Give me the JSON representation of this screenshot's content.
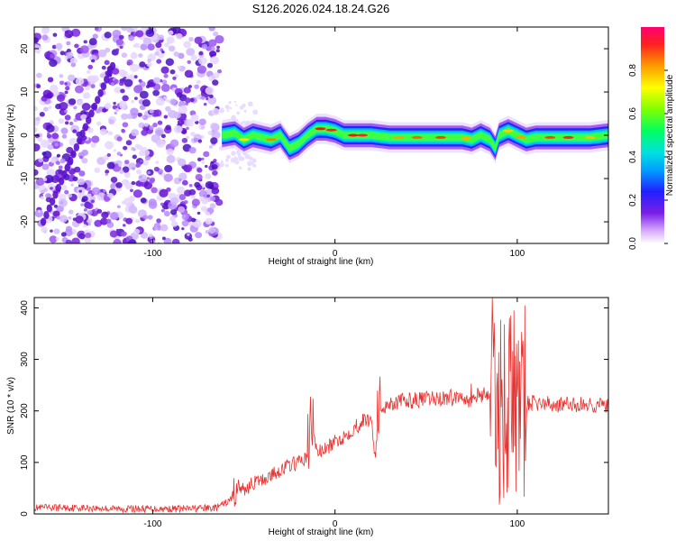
{
  "title": "S126.2026.024.18.24.G26",
  "colors": {
    "line": "#e8322f",
    "axis": "#000000",
    "background": "#ffffff"
  },
  "chart_data": [
    {
      "type": "heatmap",
      "xlabel": "Height of straight line (km)",
      "ylabel": "Frequency (Hz)",
      "xlim": [
        -165,
        150
      ],
      "ylim": [
        -25,
        25
      ],
      "xticks": [
        -100,
        0,
        100
      ],
      "xtick_labels": [
        "-100",
        "0",
        "100"
      ],
      "yticks": [
        -20,
        -10,
        0,
        10,
        20
      ],
      "ytick_labels": [
        "-20",
        "-10",
        "0",
        "10",
        "20"
      ],
      "noise_region_x": [
        -165,
        -63
      ],
      "ridge_x": [
        -62,
        -55,
        -50,
        -45,
        -35,
        -30,
        -25,
        -20,
        -15,
        -10,
        -5,
        0,
        5,
        10,
        20,
        30,
        40,
        50,
        60,
        70,
        75,
        80,
        85,
        88,
        90,
        95,
        100,
        105,
        110,
        120,
        130,
        140,
        150
      ],
      "ridge_freq": [
        0,
        0.5,
        -1,
        0,
        -1,
        0,
        -3,
        -2,
        0,
        1.5,
        1.5,
        1,
        0,
        0,
        0,
        -0.5,
        -0.5,
        -0.5,
        -0.5,
        -0.5,
        -1,
        0,
        -1,
        -3,
        0,
        1,
        0,
        -1,
        -0.5,
        -0.5,
        -0.5,
        -0.5,
        0
      ],
      "colorbar": {
        "label": "Normalized spectral amplitude",
        "range": [
          0,
          1
        ],
        "ticks": [
          0.0,
          0.2,
          0.4,
          0.6,
          0.8
        ],
        "tick_labels": [
          "0.0",
          "0.2",
          "0.4",
          "0.6",
          "0.8"
        ]
      }
    },
    {
      "type": "line",
      "series_name": "SNR",
      "xlabel": "Height of straight line (km)",
      "ylabel": "SNR (10 * v/v)",
      "xlim": [
        -165,
        150
      ],
      "ylim": [
        0,
        420
      ],
      "xticks": [
        -100,
        0,
        100
      ],
      "xtick_labels": [
        "-100",
        "0",
        "100"
      ],
      "yticks": [
        0,
        100,
        200,
        300,
        400
      ],
      "ytick_labels": [
        "0",
        "100",
        "200",
        "300",
        "400"
      ],
      "x": [
        -165,
        -140,
        -120,
        -100,
        -80,
        -65,
        -58,
        -53,
        -50,
        -45,
        -40,
        -35,
        -30,
        -25,
        -20,
        -15,
        -13,
        -10,
        -5,
        0,
        5,
        10,
        15,
        20,
        22,
        24,
        25,
        30,
        40,
        50,
        60,
        70,
        75,
        80,
        85,
        88,
        90,
        92,
        95,
        98,
        100,
        105,
        110,
        120,
        130,
        140,
        150
      ],
      "y": [
        12,
        12,
        10,
        10,
        10,
        12,
        25,
        55,
        45,
        60,
        65,
        75,
        85,
        95,
        100,
        110,
        190,
        120,
        125,
        140,
        150,
        165,
        180,
        185,
        110,
        195,
        205,
        215,
        220,
        222,
        225,
        228,
        230,
        232,
        235,
        230,
        200,
        210,
        220,
        225,
        215,
        215,
        215,
        212,
        212,
        212,
        210
      ],
      "spike_regions": [
        {
          "x": [
            -56,
            -54
          ],
          "amplitude": 40
        },
        {
          "x": [
            -15,
            -12
          ],
          "amplitude": 90
        },
        {
          "x": [
            23,
            25
          ],
          "amplitude": 80
        },
        {
          "x": [
            73,
            78
          ],
          "amplitude": 30
        },
        {
          "x": [
            85,
            105
          ],
          "amplitude": 190
        }
      ]
    }
  ]
}
